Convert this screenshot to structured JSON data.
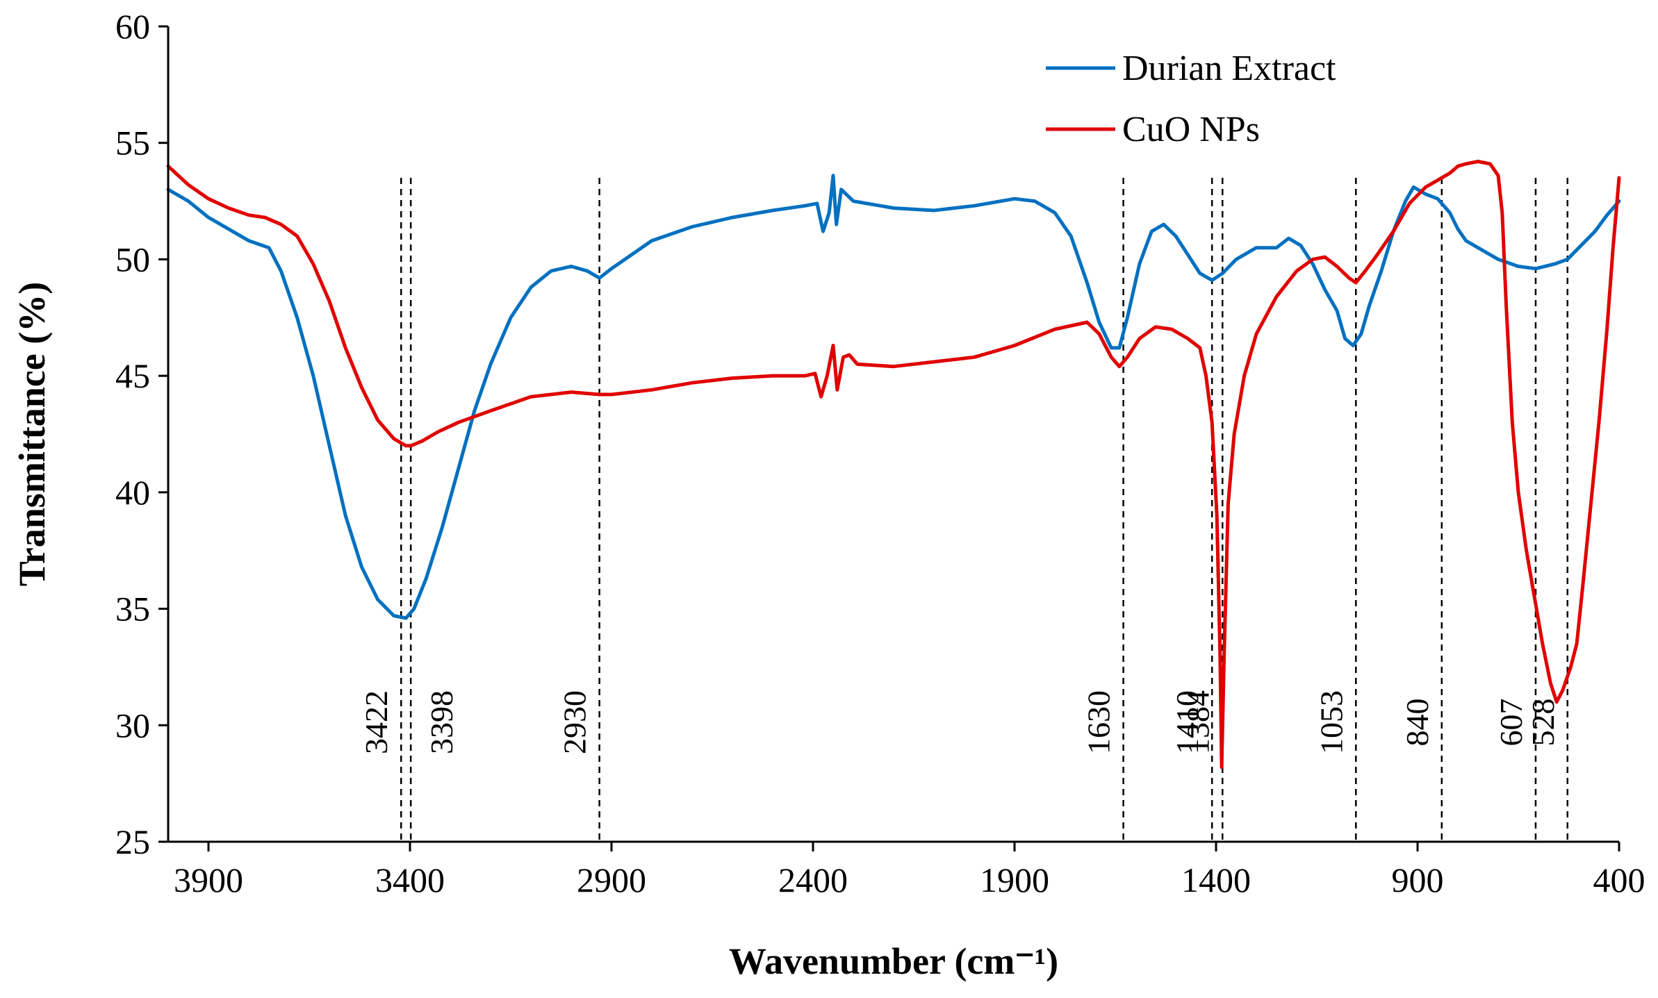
{
  "chart_data": {
    "type": "line",
    "title": "",
    "xlabel": "Wavenumber (cm⁻¹)",
    "ylabel": "Transmittance (%)",
    "xlim": [
      4000,
      400
    ],
    "ylim": [
      25,
      60
    ],
    "x_ticks": [
      "3900",
      "3400",
      "2900",
      "2400",
      "1900",
      "1400",
      "900",
      "400"
    ],
    "y_ticks": [
      "25",
      "30",
      "35",
      "40",
      "45",
      "50",
      "55",
      "60"
    ],
    "legend": {
      "position": "top-right",
      "entries": [
        "Durian Extract",
        "CuO NPs"
      ]
    },
    "series": [
      {
        "name": "Durian Extract",
        "color": "#0070C0",
        "points": [
          [
            4000,
            53.0
          ],
          [
            3950,
            52.5
          ],
          [
            3900,
            51.8
          ],
          [
            3850,
            51.3
          ],
          [
            3800,
            50.8
          ],
          [
            3750,
            50.5
          ],
          [
            3720,
            49.5
          ],
          [
            3680,
            47.5
          ],
          [
            3640,
            45.0
          ],
          [
            3600,
            42.0
          ],
          [
            3560,
            39.0
          ],
          [
            3520,
            36.8
          ],
          [
            3480,
            35.4
          ],
          [
            3440,
            34.7
          ],
          [
            3410,
            34.6
          ],
          [
            3390,
            35.0
          ],
          [
            3360,
            36.3
          ],
          [
            3320,
            38.5
          ],
          [
            3280,
            41.0
          ],
          [
            3240,
            43.5
          ],
          [
            3200,
            45.5
          ],
          [
            3150,
            47.5
          ],
          [
            3100,
            48.8
          ],
          [
            3050,
            49.5
          ],
          [
            3000,
            49.7
          ],
          [
            2960,
            49.5
          ],
          [
            2930,
            49.2
          ],
          [
            2900,
            49.6
          ],
          [
            2850,
            50.2
          ],
          [
            2800,
            50.8
          ],
          [
            2700,
            51.4
          ],
          [
            2600,
            51.8
          ],
          [
            2500,
            52.1
          ],
          [
            2420,
            52.3
          ],
          [
            2390,
            52.4
          ],
          [
            2375,
            51.2
          ],
          [
            2360,
            52.0
          ],
          [
            2350,
            53.6
          ],
          [
            2342,
            51.5
          ],
          [
            2330,
            53.0
          ],
          [
            2300,
            52.5
          ],
          [
            2200,
            52.2
          ],
          [
            2100,
            52.1
          ],
          [
            2000,
            52.3
          ],
          [
            1900,
            52.6
          ],
          [
            1850,
            52.5
          ],
          [
            1800,
            52.0
          ],
          [
            1760,
            51.0
          ],
          [
            1720,
            49.0
          ],
          [
            1690,
            47.3
          ],
          [
            1660,
            46.2
          ],
          [
            1640,
            46.2
          ],
          [
            1620,
            47.5
          ],
          [
            1590,
            49.8
          ],
          [
            1560,
            51.2
          ],
          [
            1530,
            51.5
          ],
          [
            1500,
            51.0
          ],
          [
            1470,
            50.2
          ],
          [
            1440,
            49.4
          ],
          [
            1410,
            49.1
          ],
          [
            1384,
            49.4
          ],
          [
            1350,
            50.0
          ],
          [
            1300,
            50.5
          ],
          [
            1250,
            50.5
          ],
          [
            1220,
            50.9
          ],
          [
            1190,
            50.6
          ],
          [
            1160,
            49.8
          ],
          [
            1130,
            48.7
          ],
          [
            1100,
            47.8
          ],
          [
            1080,
            46.6
          ],
          [
            1060,
            46.3
          ],
          [
            1040,
            46.8
          ],
          [
            1020,
            48.0
          ],
          [
            990,
            49.5
          ],
          [
            960,
            51.2
          ],
          [
            930,
            52.5
          ],
          [
            910,
            53.1
          ],
          [
            880,
            52.8
          ],
          [
            850,
            52.6
          ],
          [
            820,
            52.0
          ],
          [
            800,
            51.3
          ],
          [
            780,
            50.8
          ],
          [
            750,
            50.5
          ],
          [
            700,
            50.0
          ],
          [
            650,
            49.7
          ],
          [
            607,
            49.6
          ],
          [
            560,
            49.8
          ],
          [
            528,
            50.0
          ],
          [
            500,
            50.5
          ],
          [
            460,
            51.2
          ],
          [
            430,
            51.9
          ],
          [
            400,
            52.5
          ]
        ]
      },
      {
        "name": "CuO NPs",
        "color": "#E00000",
        "points": [
          [
            4000,
            54.0
          ],
          [
            3950,
            53.2
          ],
          [
            3900,
            52.6
          ],
          [
            3850,
            52.2
          ],
          [
            3800,
            51.9
          ],
          [
            3760,
            51.8
          ],
          [
            3720,
            51.5
          ],
          [
            3680,
            51.0
          ],
          [
            3640,
            49.8
          ],
          [
            3600,
            48.2
          ],
          [
            3560,
            46.2
          ],
          [
            3520,
            44.5
          ],
          [
            3480,
            43.1
          ],
          [
            3440,
            42.3
          ],
          [
            3410,
            42.0
          ],
          [
            3398,
            42.0
          ],
          [
            3370,
            42.2
          ],
          [
            3330,
            42.6
          ],
          [
            3280,
            43.0
          ],
          [
            3200,
            43.5
          ],
          [
            3100,
            44.1
          ],
          [
            3000,
            44.3
          ],
          [
            2930,
            44.2
          ],
          [
            2900,
            44.2
          ],
          [
            2800,
            44.4
          ],
          [
            2700,
            44.7
          ],
          [
            2600,
            44.9
          ],
          [
            2500,
            45.0
          ],
          [
            2420,
            45.0
          ],
          [
            2395,
            45.1
          ],
          [
            2380,
            44.1
          ],
          [
            2365,
            45.0
          ],
          [
            2350,
            46.3
          ],
          [
            2340,
            44.4
          ],
          [
            2325,
            45.8
          ],
          [
            2310,
            45.9
          ],
          [
            2290,
            45.5
          ],
          [
            2200,
            45.4
          ],
          [
            2100,
            45.6
          ],
          [
            2000,
            45.8
          ],
          [
            1900,
            46.3
          ],
          [
            1800,
            47.0
          ],
          [
            1720,
            47.3
          ],
          [
            1690,
            46.8
          ],
          [
            1660,
            45.8
          ],
          [
            1640,
            45.4
          ],
          [
            1620,
            45.8
          ],
          [
            1590,
            46.6
          ],
          [
            1550,
            47.1
          ],
          [
            1510,
            47.0
          ],
          [
            1470,
            46.6
          ],
          [
            1440,
            46.2
          ],
          [
            1425,
            45.0
          ],
          [
            1410,
            43.0
          ],
          [
            1398,
            39.0
          ],
          [
            1390,
            33.0
          ],
          [
            1386,
            28.2
          ],
          [
            1380,
            33.0
          ],
          [
            1370,
            39.5
          ],
          [
            1355,
            42.5
          ],
          [
            1330,
            45.0
          ],
          [
            1300,
            46.8
          ],
          [
            1250,
            48.4
          ],
          [
            1200,
            49.5
          ],
          [
            1160,
            50.0
          ],
          [
            1130,
            50.1
          ],
          [
            1100,
            49.7
          ],
          [
            1070,
            49.2
          ],
          [
            1053,
            49.0
          ],
          [
            1030,
            49.5
          ],
          [
            1000,
            50.2
          ],
          [
            960,
            51.2
          ],
          [
            920,
            52.4
          ],
          [
            880,
            53.1
          ],
          [
            850,
            53.4
          ],
          [
            820,
            53.7
          ],
          [
            800,
            54.0
          ],
          [
            780,
            54.1
          ],
          [
            750,
            54.2
          ],
          [
            720,
            54.1
          ],
          [
            700,
            53.6
          ],
          [
            690,
            52.0
          ],
          [
            680,
            48.0
          ],
          [
            665,
            43.0
          ],
          [
            650,
            40.0
          ],
          [
            630,
            37.5
          ],
          [
            610,
            35.5
          ],
          [
            590,
            33.5
          ],
          [
            570,
            31.8
          ],
          [
            555,
            31.0
          ],
          [
            540,
            31.5
          ],
          [
            520,
            32.5
          ],
          [
            505,
            33.5
          ],
          [
            490,
            36.0
          ],
          [
            470,
            39.5
          ],
          [
            450,
            43.0
          ],
          [
            430,
            47.0
          ],
          [
            415,
            50.5
          ],
          [
            400,
            53.5
          ]
        ]
      }
    ],
    "peaks": [
      {
        "label": "3422",
        "x": 3422
      },
      {
        "label": "3398",
        "x": 3398
      },
      {
        "label": "2930",
        "x": 2930
      },
      {
        "label": "1630",
        "x": 1630
      },
      {
        "label": "1410",
        "x": 1410
      },
      {
        "label": "1384",
        "x": 1384
      },
      {
        "label": "1053",
        "x": 1053
      },
      {
        "label": "840",
        "x": 840
      },
      {
        "label": "607",
        "x": 607
      },
      {
        "label": "528",
        "x": 528
      }
    ]
  }
}
